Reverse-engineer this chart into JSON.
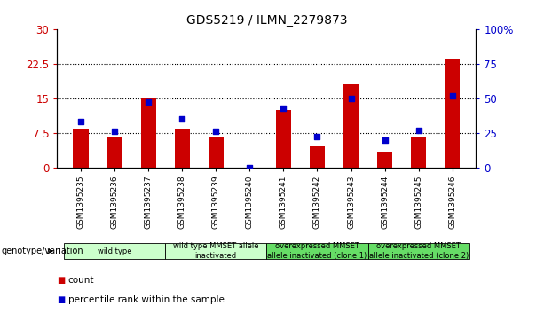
{
  "title": "GDS5219 / ILMN_2279873",
  "samples": [
    "GSM1395235",
    "GSM1395236",
    "GSM1395237",
    "GSM1395238",
    "GSM1395239",
    "GSM1395240",
    "GSM1395241",
    "GSM1395242",
    "GSM1395243",
    "GSM1395244",
    "GSM1395245",
    "GSM1395246"
  ],
  "counts": [
    8.5,
    6.5,
    15.2,
    8.5,
    6.5,
    0,
    12.5,
    4.5,
    18.0,
    3.5,
    6.5,
    23.5
  ],
  "percentiles": [
    33,
    26,
    47,
    35,
    26,
    0,
    43,
    22,
    50,
    20,
    27,
    52
  ],
  "ylim_left": [
    0,
    30
  ],
  "ylim_right": [
    0,
    100
  ],
  "yticks_left": [
    0,
    7.5,
    15,
    22.5,
    30
  ],
  "ytick_labels_left": [
    "0",
    "7.5",
    "15",
    "22.5",
    "30"
  ],
  "yticks_right": [
    0,
    25,
    50,
    75,
    100
  ],
  "ytick_labels_right": [
    "0",
    "25",
    "50",
    "75",
    "100%"
  ],
  "bar_color": "#cc0000",
  "dot_color": "#0000cc",
  "groups": [
    {
      "label": "wild type",
      "start": 0,
      "end": 2,
      "color": "#ccffcc"
    },
    {
      "label": "wild type MMSET allele\ninactivated",
      "start": 3,
      "end": 5,
      "color": "#ccffcc"
    },
    {
      "label": "overexpressed MMSET\nallele inactivated (clone 1)",
      "start": 6,
      "end": 8,
      "color": "#66dd66"
    },
    {
      "label": "overexpressed MMSET\nallele inactivated (clone 2)",
      "start": 9,
      "end": 11,
      "color": "#66dd66"
    }
  ],
  "legend_label_count": "count",
  "legend_label_percentile": "percentile rank within the sample",
  "genotype_label": "genotype/variation"
}
